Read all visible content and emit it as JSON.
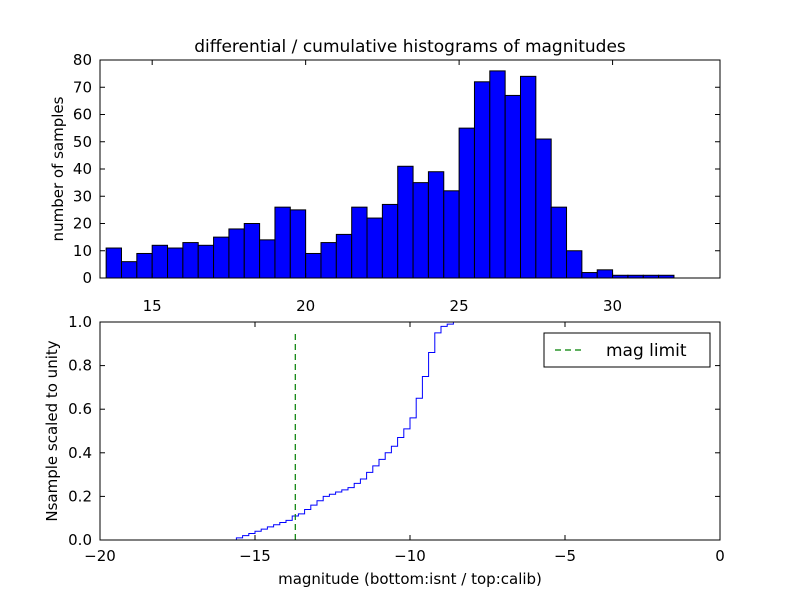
{
  "chart_data": [
    {
      "type": "bar",
      "title": "differential / cumulative histograms of magnitudes",
      "xlabel": "",
      "ylabel": "number of samples",
      "xlim": [
        13.3,
        33.5
      ],
      "ylim": [
        0,
        80
      ],
      "xticks": [
        15,
        20,
        25,
        30
      ],
      "yticks": [
        0,
        10,
        20,
        30,
        40,
        50,
        60,
        70,
        80
      ],
      "bin_start": 13.5,
      "bin_width": 0.5,
      "values": [
        11,
        6,
        9,
        12,
        11,
        13,
        12,
        15,
        18,
        20,
        14,
        26,
        25,
        9,
        13,
        16,
        26,
        22,
        27,
        41,
        35,
        39,
        32,
        55,
        72,
        76,
        67,
        74,
        51,
        26,
        10,
        2,
        3,
        1,
        1,
        1,
        1
      ],
      "bar_color": "#0000ff"
    },
    {
      "type": "line",
      "step": true,
      "xlabel": "magnitude (bottom:isnt / top:calib)",
      "ylabel": "Nsample scaled to unity",
      "xlim": [
        -20,
        0
      ],
      "ylim": [
        0,
        1.0
      ],
      "xticks": [
        -20,
        -15,
        -10,
        -5,
        0
      ],
      "xtick_labels": [
        "−20",
        "−15",
        "−10",
        "−5",
        "0"
      ],
      "yticks": [
        0.0,
        0.2,
        0.4,
        0.6,
        0.8,
        1.0
      ],
      "ytick_labels": [
        "0.0",
        "0.2",
        "0.4",
        "0.6",
        "0.8",
        "1.0"
      ],
      "series": [
        {
          "name": "cumulative",
          "color": "#0000ff",
          "x": [
            -20,
            -15.8,
            -15.6,
            -15.4,
            -15.2,
            -15.0,
            -14.8,
            -14.6,
            -14.4,
            -14.2,
            -14.0,
            -13.8,
            -13.6,
            -13.4,
            -13.2,
            -13.0,
            -12.8,
            -12.6,
            -12.4,
            -12.2,
            -12.0,
            -11.8,
            -11.6,
            -11.4,
            -11.2,
            -11.0,
            -10.8,
            -10.6,
            -10.4,
            -10.2,
            -10.0,
            -9.8,
            -9.6,
            -9.4,
            -9.2,
            -9.0,
            -8.8,
            -8.6,
            -8.4,
            -8.2,
            -8.0,
            -7.8,
            -7.6,
            -7.4,
            0
          ],
          "y": [
            0,
            0.0,
            0.01,
            0.02,
            0.03,
            0.04,
            0.05,
            0.06,
            0.07,
            0.08,
            0.09,
            0.11,
            0.12,
            0.14,
            0.16,
            0.18,
            0.2,
            0.21,
            0.22,
            0.23,
            0.24,
            0.26,
            0.28,
            0.31,
            0.34,
            0.37,
            0.4,
            0.43,
            0.47,
            0.51,
            0.56,
            0.65,
            0.75,
            0.86,
            0.95,
            0.98,
            0.99,
            1.0,
            1.0,
            1.0,
            1.0,
            1.0,
            1.0,
            1.0,
            1.0
          ]
        },
        {
          "name": "mag limit",
          "color": "#008000",
          "style": "dashed",
          "x_value": -13.7,
          "y_range": [
            0,
            0.95
          ]
        }
      ],
      "legend": {
        "label": "mag limit",
        "placement": "top-right"
      }
    }
  ]
}
